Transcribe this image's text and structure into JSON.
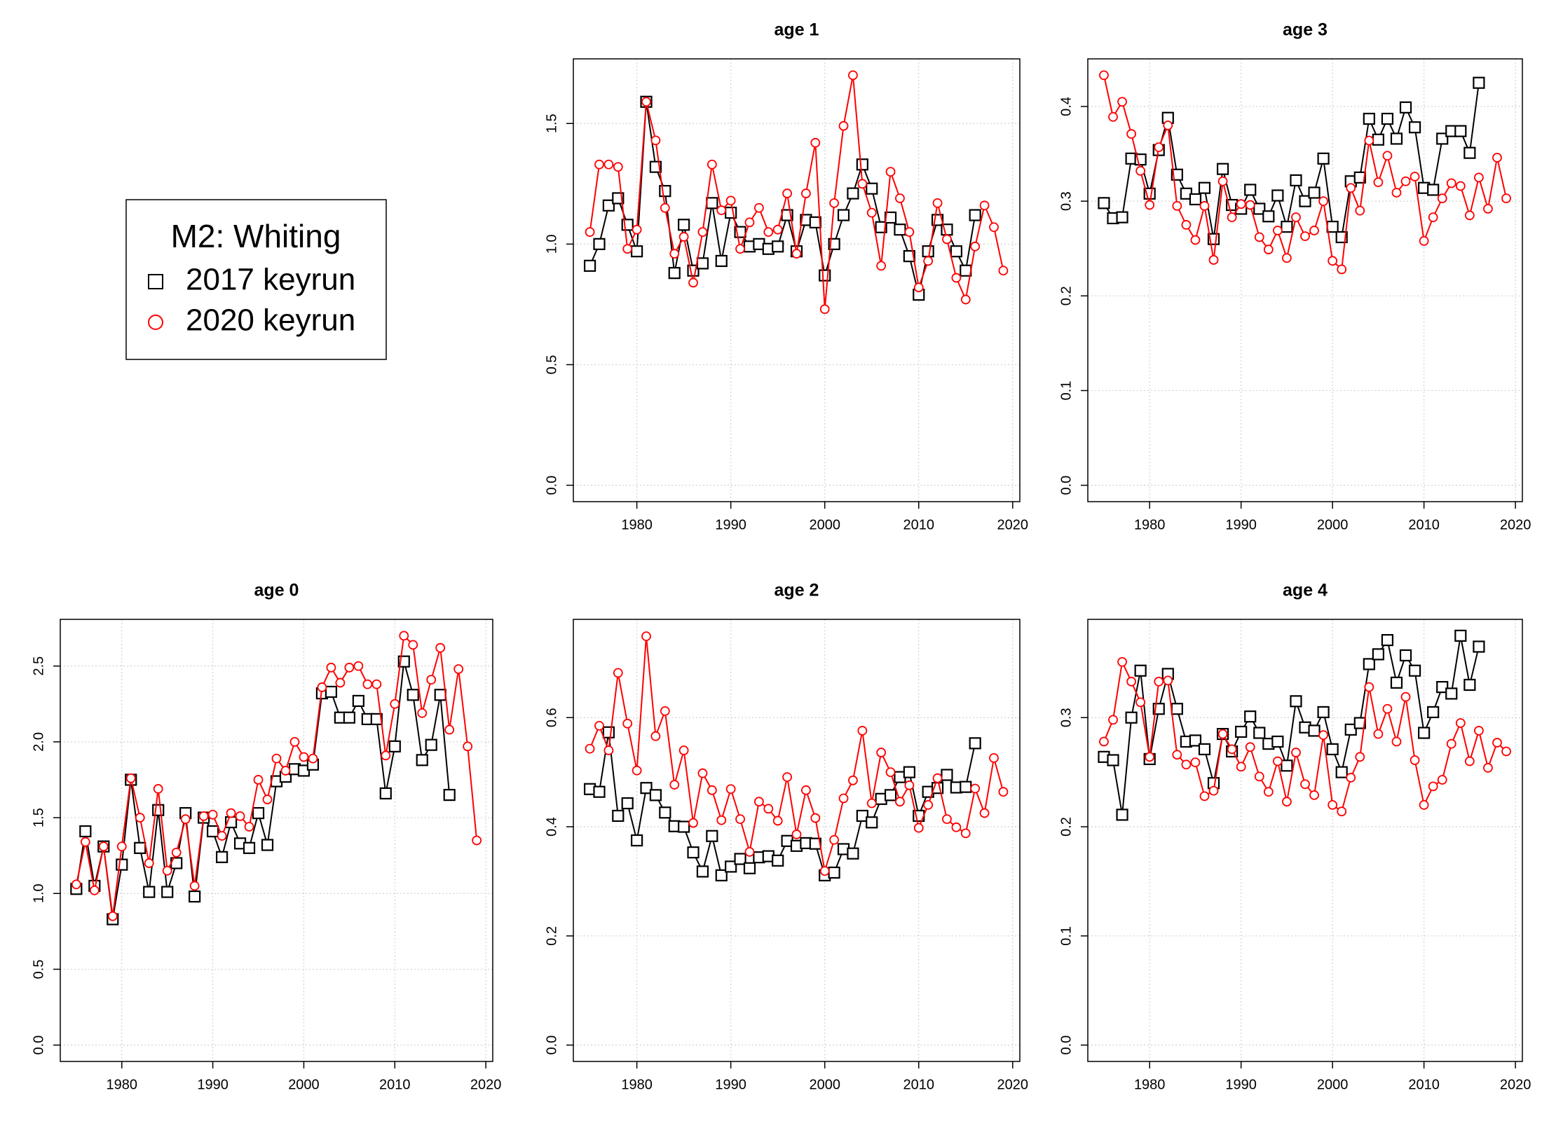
{
  "legend": {
    "title": "M2: Whiting"
  },
  "chart_data": [
    {
      "type": "line",
      "title": "age 0",
      "grid": true,
      "x": [
        1975,
        1976,
        1977,
        1978,
        1979,
        1980,
        1981,
        1982,
        1983,
        1984,
        1985,
        1986,
        1987,
        1988,
        1989,
        1990,
        1991,
        1992,
        1993,
        1994,
        1995,
        1996,
        1997,
        1998,
        1999,
        2000,
        2001,
        2002,
        2003,
        2004,
        2005,
        2006,
        2007,
        2008,
        2009,
        2010,
        2011,
        2012,
        2013,
        2014,
        2015,
        2016,
        2017,
        2018,
        2019
      ],
      "xlim": [
        1973.24,
        2020.76
      ],
      "xticks": [
        1980,
        1990,
        2000,
        2010,
        2020
      ],
      "ylim": [
        -0.108,
        2.808
      ],
      "yticks": [
        {
          "value": 0,
          "label": "0.0"
        },
        0.5,
        {
          "value": 1,
          "label": "1.0"
        },
        1.5,
        {
          "value": 2,
          "label": "2.0"
        },
        2.5
      ],
      "series": [
        {
          "name": "2017 keyrun",
          "color": "#000000",
          "marker": "square",
          "values": [
            1.03,
            1.41,
            1.05,
            1.31,
            0.83,
            1.19,
            1.75,
            1.3,
            1.01,
            1.55,
            1.01,
            1.2,
            1.53,
            0.98,
            1.5,
            1.41,
            1.24,
            1.47,
            1.33,
            1.3,
            1.53,
            1.32,
            1.74,
            1.77,
            1.82,
            1.81,
            1.85,
            2.32,
            2.33,
            2.16,
            2.16,
            2.27,
            2.15,
            2.15,
            1.66,
            1.97,
            2.53,
            2.31,
            1.88,
            1.98,
            2.31,
            1.65,
            null,
            null,
            null
          ]
        },
        {
          "name": "2020 keyrun",
          "color": "#ff0000",
          "marker": "circle",
          "values": [
            1.06,
            1.34,
            1.02,
            1.31,
            0.85,
            1.31,
            1.76,
            1.5,
            1.2,
            1.69,
            1.15,
            1.27,
            1.49,
            1.05,
            1.51,
            1.52,
            1.38,
            1.53,
            1.51,
            1.44,
            1.75,
            1.62,
            1.89,
            1.81,
            2.0,
            1.9,
            1.89,
            2.36,
            2.49,
            2.39,
            2.49,
            2.5,
            2.38,
            2.38,
            1.91,
            2.25,
            2.7,
            2.64,
            2.19,
            2.41,
            2.62,
            2.08,
            2.48,
            1.97,
            1.35
          ]
        }
      ]
    },
    {
      "type": "line",
      "title": "age 1",
      "grid": true,
      "x": [
        1975,
        1976,
        1977,
        1978,
        1979,
        1980,
        1981,
        1982,
        1983,
        1984,
        1985,
        1986,
        1987,
        1988,
        1989,
        1990,
        1991,
        1992,
        1993,
        1994,
        1995,
        1996,
        1997,
        1998,
        1999,
        2000,
        2001,
        2002,
        2003,
        2004,
        2005,
        2006,
        2007,
        2008,
        2009,
        2010,
        2011,
        2012,
        2013,
        2014,
        2015,
        2016,
        2017,
        2018,
        2019
      ],
      "xlim": [
        1973.24,
        2020.76
      ],
      "xticks": [
        1980,
        1990,
        2000,
        2010,
        2020
      ],
      "ylim": [
        -0.068,
        1.768
      ],
      "yticks": [
        {
          "value": 0,
          "label": "0.0"
        },
        0.5,
        {
          "value": 1,
          "label": "1.0"
        },
        1.5
      ],
      "series": [
        {
          "name": "2017 keyrun",
          "color": "#000000",
          "marker": "square",
          "values": [
            0.91,
            1.0,
            1.16,
            1.19,
            1.08,
            0.97,
            1.59,
            1.32,
            1.22,
            0.88,
            1.08,
            0.89,
            0.92,
            1.17,
            0.93,
            1.13,
            1.05,
            0.99,
            1.0,
            0.98,
            0.99,
            1.12,
            0.97,
            1.1,
            1.09,
            0.87,
            1.0,
            1.12,
            1.21,
            1.33,
            1.23,
            1.07,
            1.11,
            1.06,
            0.95,
            0.79,
            0.97,
            1.1,
            1.06,
            0.97,
            0.89,
            1.12,
            null,
            null,
            null
          ]
        },
        {
          "name": "2020 keyrun",
          "color": "#ff0000",
          "marker": "circle",
          "values": [
            1.05,
            1.33,
            1.33,
            1.32,
            0.98,
            1.06,
            1.59,
            1.43,
            1.15,
            0.96,
            1.03,
            0.84,
            1.05,
            1.33,
            1.14,
            1.18,
            0.98,
            1.09,
            1.15,
            1.05,
            1.06,
            1.21,
            0.96,
            1.21,
            1.42,
            0.73,
            1.17,
            1.49,
            1.7,
            1.25,
            1.13,
            0.91,
            1.3,
            1.19,
            1.05,
            0.82,
            0.93,
            1.17,
            1.02,
            0.86,
            0.77,
            0.99,
            1.16,
            1.07,
            0.89
          ]
        }
      ]
    },
    {
      "type": "line",
      "title": "age 2",
      "grid": true,
      "x": [
        1975,
        1976,
        1977,
        1978,
        1979,
        1980,
        1981,
        1982,
        1983,
        1984,
        1985,
        1986,
        1987,
        1988,
        1989,
        1990,
        1991,
        1992,
        1993,
        1994,
        1995,
        1996,
        1997,
        1998,
        1999,
        2000,
        2001,
        2002,
        2003,
        2004,
        2005,
        2006,
        2007,
        2008,
        2009,
        2010,
        2011,
        2012,
        2013,
        2014,
        2015,
        2016,
        2017,
        2018,
        2019
      ],
      "xlim": [
        1973.24,
        2020.76
      ],
      "xticks": [
        1980,
        1990,
        2000,
        2010,
        2020
      ],
      "ylim": [
        -0.03,
        0.78
      ],
      "yticks": [
        {
          "value": 0,
          "label": "0.0"
        },
        0.2,
        0.4,
        0.6
      ],
      "series": [
        {
          "name": "2017 keyrun",
          "color": "#000000",
          "marker": "square",
          "values": [
            0.469,
            0.464,
            0.573,
            0.42,
            0.443,
            0.375,
            0.471,
            0.458,
            0.426,
            0.401,
            0.4,
            0.353,
            0.318,
            0.383,
            0.311,
            0.327,
            0.341,
            0.324,
            0.344,
            0.346,
            0.338,
            0.374,
            0.365,
            0.37,
            0.369,
            0.311,
            0.316,
            0.359,
            0.351,
            0.42,
            0.408,
            0.451,
            0.458,
            0.491,
            0.5,
            0.42,
            0.464,
            0.471,
            0.495,
            0.472,
            0.473,
            0.553,
            null,
            null,
            null
          ]
        },
        {
          "name": "2020 keyrun",
          "color": "#ff0000",
          "marker": "circle",
          "values": [
            0.543,
            0.585,
            0.54,
            0.682,
            0.589,
            0.503,
            0.749,
            0.566,
            0.612,
            0.477,
            0.54,
            0.407,
            0.498,
            0.467,
            0.412,
            0.469,
            0.414,
            0.354,
            0.446,
            0.433,
            0.411,
            0.491,
            0.386,
            0.467,
            0.416,
            0.319,
            0.376,
            0.452,
            0.485,
            0.576,
            0.443,
            0.536,
            0.5,
            0.446,
            0.476,
            0.398,
            0.44,
            0.489,
            0.414,
            0.399,
            0.388,
            0.47,
            0.425,
            0.526,
            0.464
          ]
        }
      ]
    },
    {
      "type": "line",
      "title": "age 3",
      "grid": true,
      "x": [
        1975,
        1976,
        1977,
        1978,
        1979,
        1980,
        1981,
        1982,
        1983,
        1984,
        1985,
        1986,
        1987,
        1988,
        1989,
        1990,
        1991,
        1992,
        1993,
        1994,
        1995,
        1996,
        1997,
        1998,
        1999,
        2000,
        2001,
        2002,
        2003,
        2004,
        2005,
        2006,
        2007,
        2008,
        2009,
        2010,
        2011,
        2012,
        2013,
        2014,
        2015,
        2016,
        2017,
        2018,
        2019
      ],
      "xlim": [
        1973.24,
        2020.76
      ],
      "xticks": [
        1980,
        1990,
        2000,
        2010,
        2020
      ],
      "ylim": [
        -0.0173,
        0.4503
      ],
      "yticks": [
        {
          "value": 0,
          "label": "0.0"
        },
        0.1,
        0.2,
        0.3,
        0.4
      ],
      "series": [
        {
          "name": "2017 keyrun",
          "color": "#000000",
          "marker": "square",
          "values": [
            0.298,
            0.282,
            0.283,
            0.345,
            0.344,
            0.308,
            0.354,
            0.388,
            0.328,
            0.308,
            0.302,
            0.314,
            0.26,
            0.334,
            0.296,
            0.292,
            0.312,
            0.292,
            0.284,
            0.306,
            0.273,
            0.322,
            0.3,
            0.309,
            0.345,
            0.273,
            0.262,
            0.321,
            0.325,
            0.387,
            0.365,
            0.387,
            0.366,
            0.399,
            0.378,
            0.314,
            0.312,
            0.366,
            0.374,
            0.374,
            0.351,
            0.425,
            null,
            null,
            null
          ]
        },
        {
          "name": "2020 keyrun",
          "color": "#ff0000",
          "marker": "circle",
          "values": [
            0.433,
            0.389,
            0.405,
            0.371,
            0.332,
            0.296,
            0.357,
            0.38,
            0.295,
            0.275,
            0.259,
            0.295,
            0.238,
            0.321,
            0.283,
            0.297,
            0.296,
            0.262,
            0.249,
            0.269,
            0.24,
            0.283,
            0.263,
            0.269,
            0.3,
            0.237,
            0.228,
            0.314,
            0.29,
            0.364,
            0.32,
            0.348,
            0.309,
            0.321,
            0.326,
            0.258,
            0.283,
            0.303,
            0.319,
            0.316,
            0.285,
            0.325,
            0.292,
            0.346,
            0.303
          ]
        }
      ]
    },
    {
      "type": "line",
      "title": "age 4",
      "grid": true,
      "x": [
        1975,
        1976,
        1977,
        1978,
        1979,
        1980,
        1981,
        1982,
        1983,
        1984,
        1985,
        1986,
        1987,
        1988,
        1989,
        1990,
        1991,
        1992,
        1993,
        1994,
        1995,
        1996,
        1997,
        1998,
        1999,
        2000,
        2001,
        2002,
        2003,
        2004,
        2005,
        2006,
        2007,
        2008,
        2009,
        2010,
        2011,
        2012,
        2013,
        2014,
        2015,
        2016,
        2017,
        2018,
        2019
      ],
      "xlim": [
        1973.24,
        2020.76
      ],
      "xticks": [
        1980,
        1990,
        2000,
        2010,
        2020
      ],
      "ylim": [
        -0.015,
        0.39
      ],
      "yticks": [
        {
          "value": 0,
          "label": "0.0"
        },
        0.1,
        0.2,
        0.3
      ],
      "series": [
        {
          "name": "2017 keyrun",
          "color": "#000000",
          "marker": "square",
          "values": [
            0.264,
            0.261,
            0.211,
            0.3,
            0.343,
            0.262,
            0.308,
            0.34,
            0.308,
            0.278,
            0.279,
            0.271,
            0.24,
            0.285,
            0.269,
            0.287,
            0.301,
            0.286,
            0.276,
            0.278,
            0.256,
            0.315,
            0.291,
            0.288,
            0.305,
            0.271,
            0.25,
            0.289,
            0.295,
            0.349,
            0.358,
            0.371,
            0.332,
            0.357,
            0.343,
            0.286,
            0.305,
            0.328,
            0.322,
            0.375,
            0.33,
            0.365,
            null,
            null,
            null
          ]
        },
        {
          "name": "2020 keyrun",
          "color": "#ff0000",
          "marker": "circle",
          "values": [
            0.278,
            0.298,
            0.351,
            0.333,
            0.314,
            0.264,
            0.333,
            0.334,
            0.266,
            0.257,
            0.259,
            0.228,
            0.233,
            0.285,
            0.271,
            0.255,
            0.273,
            0.246,
            0.232,
            0.26,
            0.223,
            0.268,
            0.239,
            0.229,
            0.284,
            0.22,
            0.214,
            0.245,
            0.264,
            0.328,
            0.285,
            0.308,
            0.278,
            0.319,
            0.261,
            0.22,
            0.237,
            0.243,
            0.276,
            0.295,
            0.26,
            0.288,
            0.254,
            0.277,
            0.269
          ]
        }
      ]
    }
  ]
}
